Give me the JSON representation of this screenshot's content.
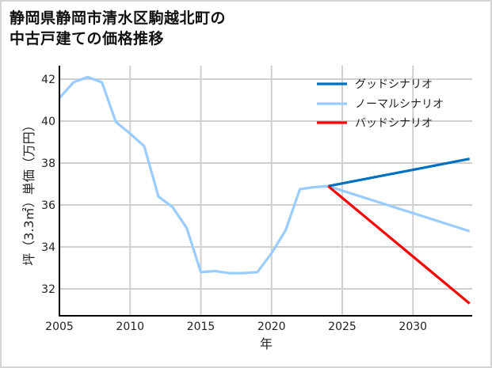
{
  "title": {
    "line1": "静岡県静岡市清水区駒越北町の",
    "line2": "中古戸建ての価格推移"
  },
  "colors": {
    "good": "#0070c0",
    "normal": "#99ccff",
    "bad": "#ff0000",
    "grid": "#d0d0d0",
    "axis": "#000000",
    "frame": "#d4d4d4"
  },
  "chart_data": {
    "type": "line",
    "title": "静岡県静岡市清水区駒越北町の中古戸建ての価格推移",
    "xlabel": "年",
    "ylabel": "坪（3.3㎡）単価（万円）",
    "xlim": [
      2005,
      2034
    ],
    "ylim": [
      30.8,
      42.5
    ],
    "xticks": [
      2005,
      2010,
      2015,
      2020,
      2025,
      2030
    ],
    "yticks": [
      32,
      34,
      36,
      38,
      40,
      42
    ],
    "grid": true,
    "legend_position": "upper right",
    "series": [
      {
        "name": "グッドシナリオ",
        "color": "#0070c0",
        "x": [
          2024,
          2034
        ],
        "values": [
          36.9,
          38.2
        ]
      },
      {
        "name": "ノーマルシナリオ",
        "color": "#99ccff",
        "x": [
          2005,
          2006,
          2007,
          2008,
          2009,
          2010,
          2011,
          2012,
          2013,
          2014,
          2015,
          2016,
          2017,
          2018,
          2019,
          2020,
          2021,
          2022,
          2023,
          2024,
          2034
        ],
        "values": [
          41.1,
          41.85,
          42.1,
          41.85,
          39.95,
          39.4,
          38.8,
          36.4,
          35.9,
          34.9,
          32.8,
          32.85,
          32.75,
          32.75,
          32.8,
          33.7,
          34.8,
          36.75,
          36.85,
          36.9,
          34.75
        ]
      },
      {
        "name": "バッドシナリオ",
        "color": "#ff0000",
        "x": [
          2024,
          2034
        ],
        "values": [
          36.9,
          31.3
        ]
      }
    ]
  }
}
